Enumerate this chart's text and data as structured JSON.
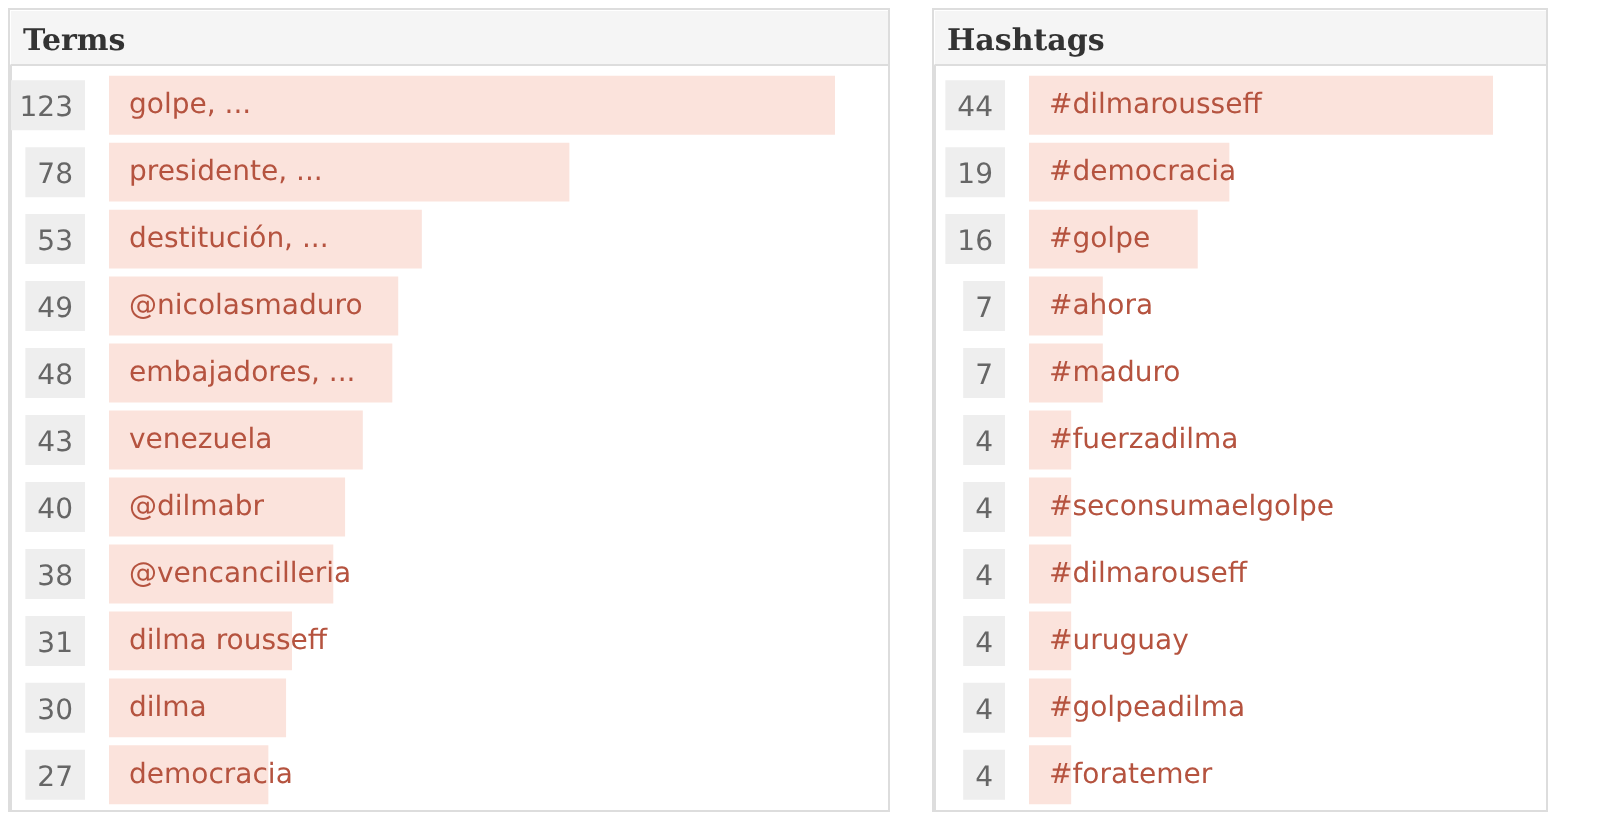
{
  "chart_data": [
    {
      "type": "bar",
      "orientation": "horizontal",
      "title": "Terms",
      "categories": [
        "golpe, ...",
        "presidente, ...",
        "destitución, ...",
        "@nicolasmaduro",
        "embajadores, ...",
        "venezuela",
        "@dilmabr",
        "@vencancilleria",
        "dilma rousseff",
        "dilma",
        "democracia"
      ],
      "values": [
        123,
        78,
        53,
        49,
        48,
        43,
        40,
        38,
        31,
        30,
        27
      ],
      "color": "#fbe3dc",
      "data_labels": true,
      "tick_labels": "y"
    },
    {
      "type": "bar",
      "orientation": "horizontal",
      "title": "Hashtags",
      "categories": [
        "#dilmarousseff",
        "#democracia",
        "#golpe",
        "#ahora",
        "#maduro",
        "#fuerzadilma",
        "#seconsumaelgolpe",
        "#dilmarouseff",
        "#uruguay",
        "#golpeadilma",
        "#foratemer"
      ],
      "values": [
        44,
        19,
        16,
        7,
        7,
        4,
        4,
        4,
        4,
        4,
        4
      ],
      "color": "#fbe3dc",
      "data_labels": true,
      "tick_labels": "y"
    }
  ]
}
